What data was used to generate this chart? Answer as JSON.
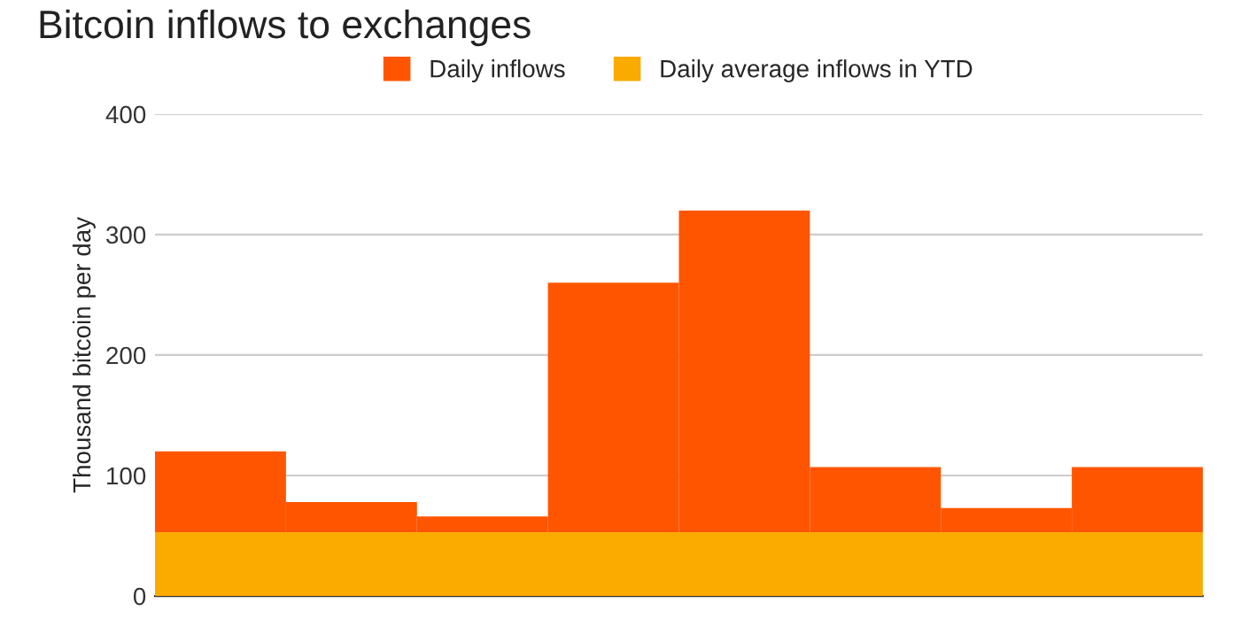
{
  "chart_data": {
    "type": "bar",
    "title": "Bitcoin inflows to exchanges",
    "ylabel": "Thousand bitcoin per day",
    "categories": [
      null,
      null,
      null,
      null,
      null,
      null,
      null,
      null
    ],
    "series": [
      {
        "name": "Daily inflows",
        "color": "#ff5500",
        "values": [
          120,
          78,
          66,
          260,
          320,
          107,
          73,
          107
        ]
      }
    ],
    "bands": [
      {
        "axis": "y",
        "from": 0,
        "to": 53,
        "label": "Daily average inflows in YTD",
        "color": "#fbaa00"
      }
    ],
    "ylim": [
      0,
      400
    ],
    "yticks": [
      0,
      100,
      200,
      300,
      400
    ],
    "grid": "y",
    "legend": "top"
  }
}
